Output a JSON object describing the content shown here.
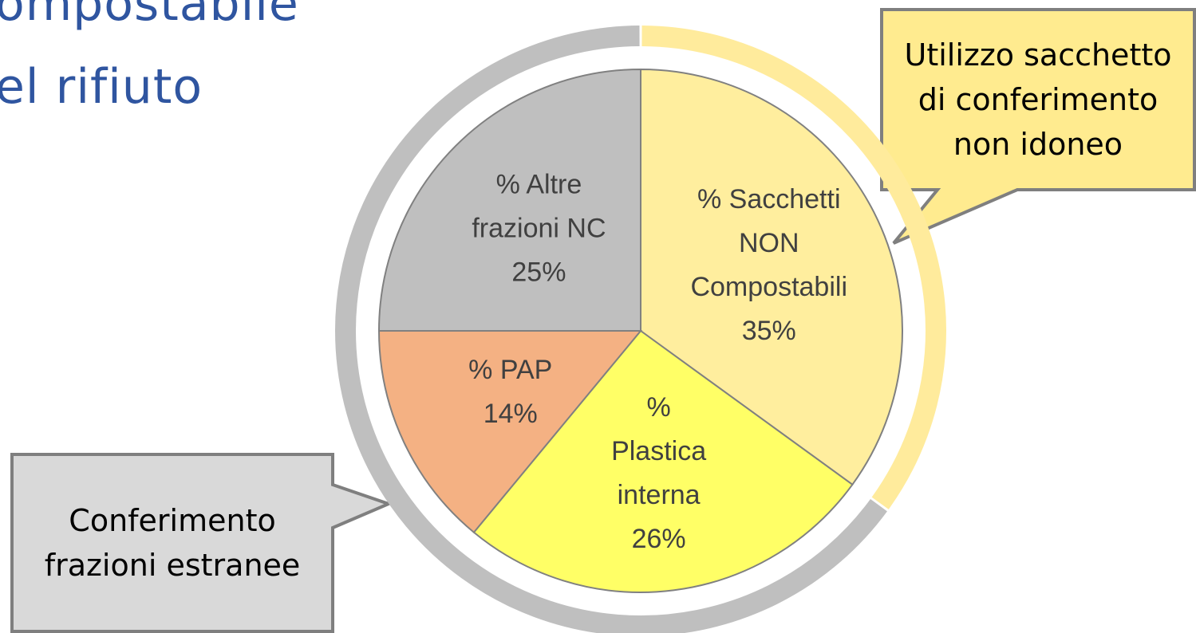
{
  "slide": {
    "title_lines": [
      "ompostabile",
      "el rifiuto"
    ],
    "callouts": [
      "Utilizzo sacchetto\ndi conferimento\nnon idoneo",
      "Conferimento\nfrazioni estranee"
    ]
  },
  "chart_data": {
    "type": "pie",
    "categories": [
      "% Sacchetti\nNON\nCompostabili",
      "%\nPlastica\ninterna",
      "% PAP",
      "% Altre\nfrazioni NC"
    ],
    "values": [
      35,
      26,
      14,
      25
    ],
    "value_labels": [
      "35%",
      "26%",
      "14%",
      "25%"
    ],
    "colors": [
      "#ffee9e",
      "#ffff66",
      "#f4b183",
      "#bfbfbf"
    ]
  }
}
